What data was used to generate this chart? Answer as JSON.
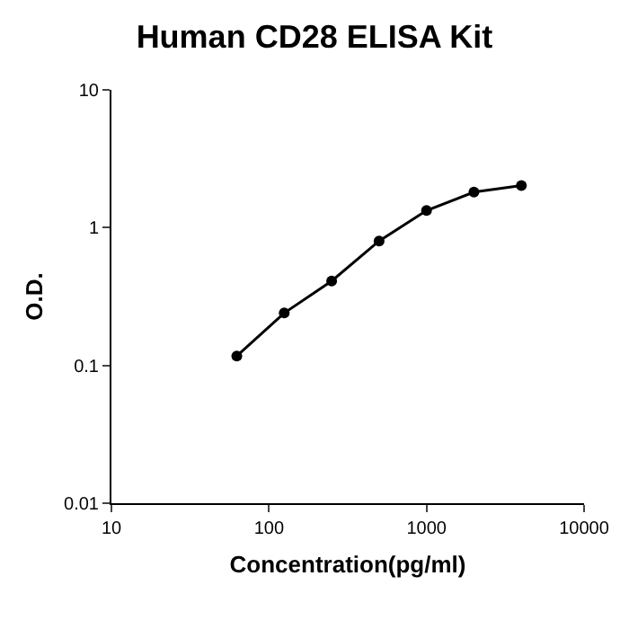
{
  "chart_data": {
    "type": "line",
    "title": "Human CD28 ELISA Kit",
    "xlabel": "Concentration(pg/ml)",
    "ylabel": "O.D.",
    "x": [
      62.5,
      125,
      250,
      500,
      1000,
      2000,
      4000
    ],
    "series": [
      {
        "color": "#000000",
        "values": [
          0.117,
          0.24,
          0.41,
          0.8,
          1.33,
          1.81,
          2.02
        ]
      }
    ],
    "log": "xy",
    "xlim": [
      10,
      10000
    ],
    "ylim": [
      0.01,
      10
    ],
    "xticks": [
      10,
      100,
      1000,
      10000
    ],
    "yticks": [
      0.01,
      0.1,
      1,
      10
    ],
    "grid": false,
    "marker": "circle",
    "line_style": "solid"
  }
}
